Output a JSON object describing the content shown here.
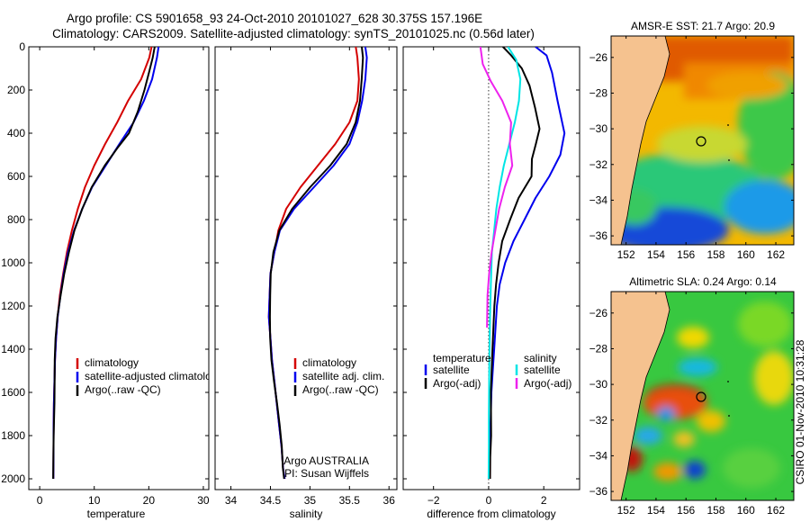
{
  "header": {
    "title_line1": "Argo profile: CS 5901658_93 24-Oct-2010 20101027_628 30.375S 157.196E",
    "title_line2": "Climatology: CARS2009. Satellite-adjusted climatology: synTS_20101025.nc (0.56d later)"
  },
  "side_label": "CSIRO 01-Nov-2010 10:31:28",
  "credit": {
    "line1": "Argo AUSTRALIA",
    "line2": "PI: Susan Wijffels"
  },
  "colors": {
    "clim": "#d40000",
    "sat": "#0000ee",
    "argo": "#000000",
    "cyan": "#00e5e5",
    "magenta": "#ee22ee",
    "land": "#f5c28f"
  },
  "chart_data": [
    {
      "type": "line",
      "xlabel": "temperature",
      "xlim": [
        -2,
        31
      ],
      "ylim": [
        2050,
        0
      ],
      "xticks": [
        0,
        10,
        20,
        30
      ],
      "yticks": [
        0,
        200,
        400,
        600,
        800,
        1000,
        1200,
        1400,
        1600,
        1800,
        2000
      ],
      "legend": [
        "climatology",
        "satellite-adjusted climatology",
        "Argo(..raw -QC)"
      ],
      "series": [
        {
          "name": "climatology",
          "color": "clim",
          "x": [
            20.5,
            20.1,
            18.6,
            16.2,
            14.2,
            12.0,
            10.0,
            8.3,
            7.0,
            5.9,
            5.0,
            4.3,
            3.7,
            3.3,
            3.0,
            2.8,
            2.7,
            2.6,
            2.55,
            2.52,
            2.5
          ],
          "y": [
            0,
            50,
            150,
            250,
            350,
            450,
            550,
            650,
            750,
            850,
            950,
            1050,
            1150,
            1250,
            1350,
            1450,
            1550,
            1650,
            1750,
            1900,
            2000
          ]
        },
        {
          "name": "satellite-adjusted climatology",
          "color": "sat",
          "x": [
            21.8,
            21.5,
            20.6,
            19.1,
            17.2,
            14.6,
            12.1,
            9.6,
            7.8,
            6.3,
            5.2,
            4.4,
            3.8,
            3.3,
            3.0,
            2.8,
            2.7,
            2.6,
            2.55,
            2.5
          ],
          "y": [
            0,
            50,
            150,
            250,
            350,
            450,
            550,
            650,
            750,
            850,
            950,
            1050,
            1150,
            1250,
            1350,
            1450,
            1550,
            1650,
            1750,
            2000
          ]
        },
        {
          "name": "Argo(..raw -QC)",
          "color": "argo",
          "x": [
            21.0,
            20.7,
            20.1,
            19.3,
            18.0,
            16.3,
            14.1,
            11.9,
            9.6,
            7.9,
            6.4,
            5.3,
            4.4,
            3.8,
            3.3,
            3.0,
            2.8,
            2.7,
            2.6,
            2.5,
            2.5
          ],
          "y": [
            0,
            50,
            120,
            200,
            300,
            400,
            470,
            550,
            650,
            750,
            850,
            950,
            1050,
            1150,
            1250,
            1350,
            1450,
            1550,
            1650,
            1800,
            2000
          ]
        }
      ]
    },
    {
      "type": "line",
      "xlabel": "salinity",
      "xlim": [
        33.8,
        36.1
      ],
      "ylim": [
        2050,
        0
      ],
      "xticks": [
        34,
        34.5,
        35,
        35.5,
        36
      ],
      "legend": [
        "climatology",
        "satellite adj. clim.",
        "Argo(..raw -QC)"
      ],
      "series": [
        {
          "name": "climatology",
          "color": "clim",
          "x": [
            35.58,
            35.6,
            35.62,
            35.6,
            35.5,
            35.32,
            35.1,
            34.88,
            34.7,
            34.6,
            34.55,
            34.5,
            34.49,
            34.48,
            34.5,
            34.52,
            34.55,
            34.58,
            34.61,
            34.64,
            34.66,
            34.68
          ],
          "y": [
            0,
            50,
            150,
            250,
            350,
            450,
            550,
            650,
            750,
            850,
            950,
            1050,
            1150,
            1250,
            1350,
            1450,
            1550,
            1650,
            1750,
            1850,
            1950,
            2000
          ]
        },
        {
          "name": "satellite adj. clim.",
          "color": "sat",
          "x": [
            35.7,
            35.72,
            35.7,
            35.66,
            35.6,
            35.5,
            35.3,
            35.05,
            34.8,
            34.62,
            34.55,
            34.5,
            34.49,
            34.48,
            34.5,
            34.52,
            34.55,
            34.58,
            34.61,
            34.64,
            34.66,
            34.68
          ],
          "y": [
            0,
            50,
            150,
            250,
            350,
            450,
            550,
            650,
            750,
            850,
            950,
            1050,
            1150,
            1250,
            1350,
            1450,
            1550,
            1650,
            1750,
            1850,
            1950,
            2000
          ]
        },
        {
          "name": "Argo(..raw -QC)",
          "color": "argo",
          "x": [
            35.65,
            35.67,
            35.66,
            35.64,
            35.58,
            35.46,
            35.25,
            35.0,
            34.78,
            34.62,
            34.54,
            34.5,
            34.49,
            34.49,
            34.5,
            34.52,
            34.55,
            34.58,
            34.61,
            34.64,
            34.66,
            34.68
          ],
          "y": [
            0,
            50,
            150,
            250,
            350,
            450,
            550,
            650,
            750,
            850,
            950,
            1050,
            1150,
            1250,
            1350,
            1450,
            1550,
            1650,
            1750,
            1850,
            1950,
            2000
          ]
        }
      ]
    },
    {
      "type": "line",
      "xlabel": "difference from climatology",
      "xlim": [
        -3.1,
        3.3
      ],
      "ylim": [
        2050,
        0
      ],
      "xticks": [
        -2,
        0,
        2
      ],
      "legend_columns": [
        {
          "heading": "temperature",
          "entries": [
            "satellite",
            "Argo(-adj)"
          ]
        },
        {
          "heading": "salinity",
          "entries": [
            "satellite",
            "Argo(-adj)"
          ]
        }
      ],
      "series": [
        {
          "name": "temperature satellite",
          "color": "sat",
          "x": [
            1.7,
            2.1,
            2.3,
            2.5,
            2.75,
            2.6,
            2.2,
            1.7,
            1.3,
            0.9,
            0.6,
            0.4,
            0.3,
            0.25,
            0.2,
            0.15,
            0.1,
            0.08,
            0.05,
            0.03,
            0.02
          ],
          "y": [
            0,
            40,
            120,
            250,
            400,
            500,
            600,
            700,
            800,
            900,
            1000,
            1100,
            1200,
            1300,
            1400,
            1500,
            1600,
            1700,
            1800,
            1900,
            2000
          ]
        },
        {
          "name": "temperature Argo(-adj)",
          "color": "argo",
          "x": [
            0.5,
            0.8,
            1.2,
            1.5,
            1.7,
            1.85,
            1.7,
            1.55,
            1.55,
            1.1,
            0.8,
            0.5,
            0.35,
            0.25,
            0.2,
            0.15,
            0.1,
            0.1,
            0.05,
            0.03
          ],
          "y": [
            0,
            40,
            100,
            180,
            280,
            380,
            450,
            520,
            600,
            700,
            800,
            900,
            1000,
            1100,
            1200,
            1400,
            1600,
            1800,
            1900,
            2000
          ]
        },
        {
          "name": "salinity satellite",
          "color": "cyan",
          "x": [
            0.7,
            1.0,
            1.15,
            1.1,
            0.95,
            0.75,
            0.55,
            0.4,
            0.28,
            0.2,
            0.12,
            0.08,
            0.05,
            0.03,
            0.02,
            0.01,
            0.01,
            0.0
          ],
          "y": [
            0,
            60,
            150,
            250,
            350,
            450,
            550,
            650,
            750,
            850,
            950,
            1100,
            1250,
            1400,
            1550,
            1700,
            1850,
            2000
          ]
        },
        {
          "name": "salinity Argo(-adj)",
          "color": "magenta",
          "x": [
            -0.3,
            -0.2,
            0.1,
            0.5,
            0.8,
            0.75,
            0.85,
            0.6,
            0.4,
            0.25,
            0.1,
            0.0,
            -0.05,
            -0.05
          ],
          "y": [
            0,
            80,
            160,
            250,
            350,
            450,
            550,
            650,
            750,
            850,
            950,
            1050,
            1150,
            1300
          ]
        }
      ]
    },
    {
      "type": "heatmap",
      "title": "AMSR-E SST: 21.7 Argo: 20.9",
      "xlim": [
        151,
        163.2
      ],
      "ylim": [
        -36.5,
        -24.8
      ],
      "xticks": [
        152,
        154,
        156,
        158,
        160,
        162
      ],
      "yticks": [
        -26,
        -28,
        -30,
        -32,
        -34,
        -36
      ],
      "marker": {
        "lon": 157.2,
        "lat": -30.4
      }
    },
    {
      "type": "heatmap",
      "title": "Altimetric SLA: 0.24 Argo: 0.14",
      "xlim": [
        151,
        163.2
      ],
      "ylim": [
        -36.5,
        -24.8
      ],
      "xticks": [
        152,
        154,
        156,
        158,
        160,
        162
      ],
      "yticks": [
        -26,
        -28,
        -30,
        -32,
        -34,
        -36
      ],
      "marker": {
        "lon": 157.2,
        "lat": -30.4
      }
    }
  ]
}
